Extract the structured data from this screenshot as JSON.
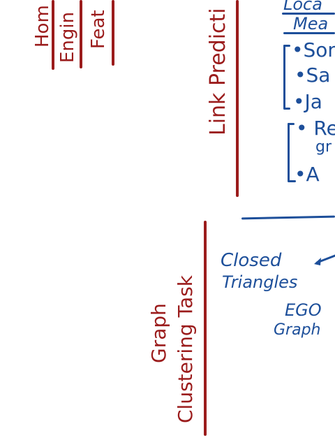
{
  "top_left_headers": [
    {
      "text": "Hom"
    },
    {
      "text": "Engin"
    },
    {
      "text": "Feat"
    }
  ],
  "link_prediction": {
    "title": "Link Predicti"
  },
  "local_measures": {
    "title_line1": "Loca",
    "title_line2": "Mea",
    "group1": [
      "•Son",
      "•Sa",
      "•Ja"
    ],
    "group2": [
      "• Re",
      "gr",
      "•A"
    ]
  },
  "graph_clustering": {
    "title_line1": "Graph",
    "title_line2": "Clustering Task",
    "closed_triangles_line1": "Closed",
    "closed_triangles_line2": "Triangles",
    "ego_line1": "EGO",
    "ego_line2": "Graph"
  },
  "colors": {
    "red_ink": "#9b1c1c",
    "blue_ink": "#1d4f9a"
  }
}
